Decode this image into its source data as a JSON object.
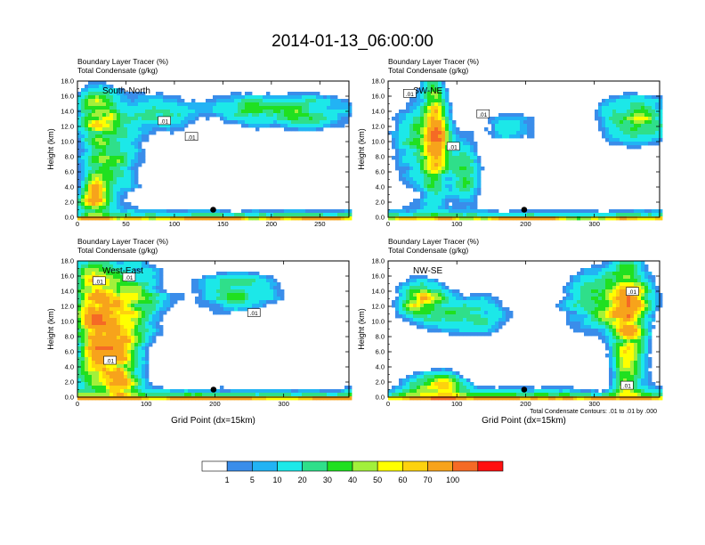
{
  "figure": {
    "title": "2014-01-13_06:00:00",
    "footnote": "Total Condensate Contours: .01 to .01 by .000",
    "xlabel": "Grid Point (dx=15km)",
    "ylabel": "Height (km)"
  },
  "chart_data": [
    {
      "type": "heatmap",
      "panel": "South-North",
      "title_lines": [
        "Boundary Layer Tracer    (%)",
        "Total Condensate    (g/kg)"
      ],
      "xlabel": "",
      "ylabel": "Height (km)",
      "xlim": [
        0,
        280
      ],
      "ylim": [
        0,
        18
      ],
      "xticks": [
        0,
        50,
        100,
        150,
        200,
        250
      ],
      "yticks": [
        0.0,
        2.0,
        4.0,
        6.0,
        8.0,
        10.0,
        12.0,
        14.0,
        16.0,
        18.0
      ],
      "contour_labels": [
        ".01",
        ".01"
      ],
      "marker": {
        "x": 140,
        "y": 1.0
      }
    },
    {
      "type": "heatmap",
      "panel": "SW-NE",
      "title_lines": [
        "Boundary Layer Tracer    (%)",
        "Total Condensate    (g/kg)"
      ],
      "xlabel": "",
      "ylabel": "Height (km)",
      "xlim": [
        0,
        395
      ],
      "ylim": [
        0,
        18
      ],
      "xticks": [
        0,
        100,
        200,
        300
      ],
      "yticks": [
        0.0,
        2.0,
        4.0,
        6.0,
        8.0,
        10.0,
        12.0,
        14.0,
        16.0,
        18.0
      ],
      "contour_labels": [
        ".01",
        ".01",
        ".01"
      ],
      "marker": {
        "x": 198,
        "y": 1.0
      }
    },
    {
      "type": "heatmap",
      "panel": "West-East",
      "title_lines": [
        "Boundary Layer Tracer    (%)",
        "Total Condensate    (g/kg)"
      ],
      "xlabel": "Grid Point (dx=15km)",
      "ylabel": "Height (km)",
      "xlim": [
        0,
        395
      ],
      "ylim": [
        0,
        18
      ],
      "xticks": [
        0,
        100,
        200,
        300
      ],
      "yticks": [
        0.0,
        2.0,
        4.0,
        6.0,
        8.0,
        10.0,
        12.0,
        14.0,
        16.0,
        18.0
      ],
      "contour_labels": [
        ".01",
        ".01",
        ".01",
        ".01"
      ],
      "marker": {
        "x": 198,
        "y": 1.0
      }
    },
    {
      "type": "heatmap",
      "panel": "NW-SE",
      "title_lines": [
        "Boundary Layer Tracer    (%)",
        "Total Condensate    (g/kg)"
      ],
      "xlabel": "Grid Point (dx=15km)",
      "ylabel": "Height (km)",
      "xlim": [
        0,
        395
      ],
      "ylim": [
        0,
        18
      ],
      "xticks": [
        0,
        100,
        200,
        300
      ],
      "yticks": [
        0.0,
        2.0,
        4.0,
        6.0,
        8.0,
        10.0,
        12.0,
        14.0,
        16.0,
        18.0
      ],
      "contour_labels": [
        ".01",
        ".01"
      ],
      "marker": {
        "x": 198,
        "y": 1.0
      }
    }
  ],
  "colorbar": {
    "colors": [
      "#ffffff",
      "#3a8dea",
      "#22b3f4",
      "#1ce8e8",
      "#2fdf8a",
      "#20e020",
      "#a2f03b",
      "#ffff00",
      "#fdd20e",
      "#f7a31b",
      "#f56a25",
      "#ff1010"
    ],
    "labels": [
      "1",
      "5",
      "10",
      "20",
      "30",
      "40",
      "50",
      "60",
      "70",
      "100"
    ]
  }
}
